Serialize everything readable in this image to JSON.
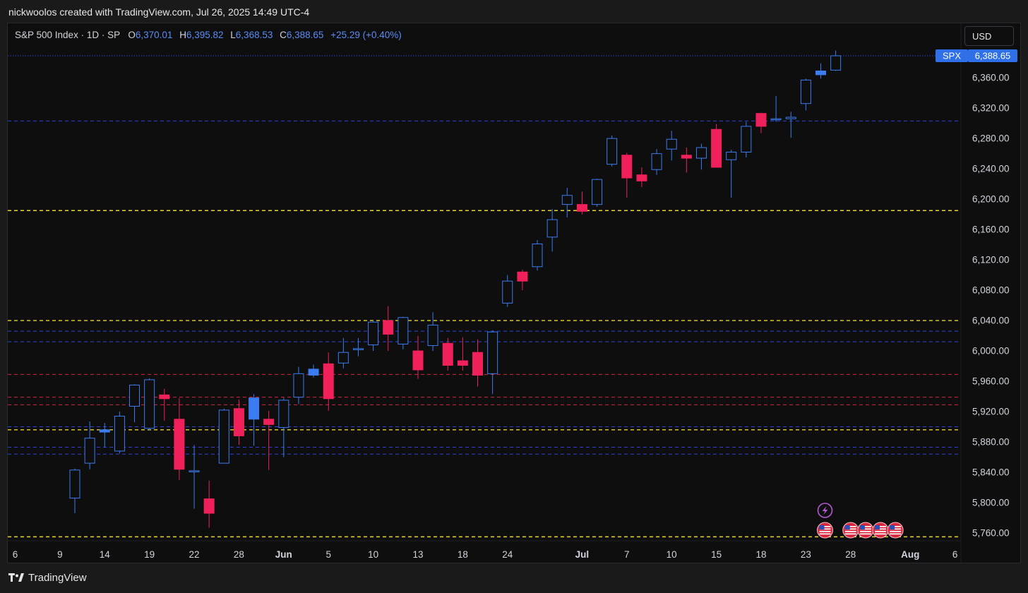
{
  "credit": "nickwoolos created with TradingView.com, Jul 26, 2025 14:49 UTC-4",
  "legend": {
    "symbol": "S&P 500 Index · 1D · SP",
    "o_label": "O",
    "o_value": "6,370.01",
    "h_label": "H",
    "h_value": "6,395.82",
    "l_label": "L",
    "l_value": "6,368.53",
    "c_label": "C",
    "c_value": "6,388.65",
    "change": "+25.29 (+0.40%)"
  },
  "currency_button": "USD",
  "price_tag": {
    "ticker": "SPX",
    "value": "6,388.65"
  },
  "footer_brand": "TradingView",
  "colors": {
    "up": "#3b7cf0",
    "down": "#f0215a",
    "yellow_line": "#e9d62a",
    "blue_line": "#2b43d6",
    "red_line": "#d7263d",
    "background": "#0e0e0f",
    "event_purple": "#b35ad6"
  },
  "chart_data": {
    "type": "candlestick",
    "ylim": [
      5742,
      6405
    ],
    "y_ticks": [
      5760,
      5800,
      5840,
      5880,
      5920,
      5960,
      6000,
      6040,
      6080,
      6120,
      6160,
      6200,
      6240,
      6280,
      6320,
      6360
    ],
    "y_tick_labels": [
      "5,760.00",
      "5,800.00",
      "5,840.00",
      "5,880.00",
      "5,920.00",
      "5,960.00",
      "6,000.00",
      "6,040.00",
      "6,080.00",
      "6,120.00",
      "6,160.00",
      "6,200.00",
      "6,240.00",
      "6,280.00",
      "6,320.00",
      "6,360.00"
    ],
    "x_ticks": [
      {
        "label": "6",
        "i": -4,
        "bold": false
      },
      {
        "label": "9",
        "i": -1,
        "bold": false
      },
      {
        "label": "14",
        "i": 2,
        "bold": false
      },
      {
        "label": "19",
        "i": 5,
        "bold": false
      },
      {
        "label": "22",
        "i": 8,
        "bold": false
      },
      {
        "label": "28",
        "i": 11,
        "bold": false
      },
      {
        "label": "Jun",
        "i": 14,
        "bold": true
      },
      {
        "label": "5",
        "i": 17,
        "bold": false
      },
      {
        "label": "10",
        "i": 20,
        "bold": false
      },
      {
        "label": "13",
        "i": 23,
        "bold": false
      },
      {
        "label": "18",
        "i": 26,
        "bold": false
      },
      {
        "label": "24",
        "i": 29,
        "bold": false
      },
      {
        "label": "Jul",
        "i": 34,
        "bold": true
      },
      {
        "label": "7",
        "i": 37,
        "bold": false
      },
      {
        "label": "10",
        "i": 40,
        "bold": false
      },
      {
        "label": "15",
        "i": 43,
        "bold": false
      },
      {
        "label": "18",
        "i": 46,
        "bold": false
      },
      {
        "label": "23",
        "i": 49,
        "bold": false
      },
      {
        "label": "28",
        "i": 52,
        "bold": false
      },
      {
        "label": "Aug",
        "i": 56,
        "bold": true
      },
      {
        "label": "6",
        "i": 59,
        "bold": false
      }
    ],
    "candles": [
      {
        "o": 5806,
        "h": 5845,
        "l": 5786,
        "c": 5843
      },
      {
        "o": 5852,
        "h": 5907,
        "l": 5844,
        "c": 5885
      },
      {
        "o": 5893,
        "h": 5905,
        "l": 5873,
        "c": 5896
      },
      {
        "o": 5868,
        "h": 5920,
        "l": 5865,
        "c": 5914
      },
      {
        "o": 5927,
        "h": 5956,
        "l": 5906,
        "c": 5955
      },
      {
        "o": 5898,
        "h": 5964,
        "l": 5895,
        "c": 5962
      },
      {
        "o": 5942,
        "h": 5950,
        "l": 5908,
        "c": 5937
      },
      {
        "o": 5910,
        "h": 5938,
        "l": 5830,
        "c": 5844
      },
      {
        "o": 5842,
        "h": 5876,
        "l": 5792,
        "c": 5842
      },
      {
        "o": 5805,
        "h": 5829,
        "l": 5767,
        "c": 5786
      },
      {
        "o": 5852,
        "h": 5924,
        "l": 5852,
        "c": 5922
      },
      {
        "o": 5924,
        "h": 5936,
        "l": 5876,
        "c": 5888
      },
      {
        "o": 5910,
        "h": 5943,
        "l": 5875,
        "c": 5938
      },
      {
        "o": 5910,
        "h": 5921,
        "l": 5843,
        "c": 5903
      },
      {
        "o": 5899,
        "h": 5938,
        "l": 5860,
        "c": 5935
      },
      {
        "o": 5939,
        "h": 5979,
        "l": 5930,
        "c": 5970
      },
      {
        "o": 5968,
        "h": 5982,
        "l": 5965,
        "c": 5976
      },
      {
        "o": 5983,
        "h": 5998,
        "l": 5921,
        "c": 5937
      },
      {
        "o": 5984,
        "h": 6017,
        "l": 5977,
        "c": 5998
      },
      {
        "o": 6002,
        "h": 6017,
        "l": 5993,
        "c": 6003
      },
      {
        "o": 6008,
        "h": 6040,
        "l": 6000,
        "c": 6038
      },
      {
        "o": 6040,
        "h": 6059,
        "l": 6000,
        "c": 6022
      },
      {
        "o": 6009,
        "h": 6045,
        "l": 6002,
        "c": 6044
      },
      {
        "o": 6000,
        "h": 6020,
        "l": 5963,
        "c": 5975
      },
      {
        "o": 6007,
        "h": 6051,
        "l": 6000,
        "c": 6034
      },
      {
        "o": 6010,
        "h": 6017,
        "l": 5974,
        "c": 5981
      },
      {
        "o": 5987,
        "h": 6018,
        "l": 5974,
        "c": 5981
      },
      {
        "o": 5998,
        "h": 6015,
        "l": 5953,
        "c": 5968
      },
      {
        "o": 5970,
        "h": 6027,
        "l": 5943,
        "c": 6025
      },
      {
        "o": 6063,
        "h": 6100,
        "l": 6058,
        "c": 6092
      },
      {
        "o": 6104,
        "h": 6107,
        "l": 6080,
        "c": 6092
      },
      {
        "o": 6111,
        "h": 6146,
        "l": 6106,
        "c": 6141
      },
      {
        "o": 6150,
        "h": 6187,
        "l": 6131,
        "c": 6173
      },
      {
        "o": 6193,
        "h": 6215,
        "l": 6176,
        "c": 6205
      },
      {
        "o": 6193,
        "h": 6210,
        "l": 6180,
        "c": 6184
      },
      {
        "o": 6193,
        "h": 6227,
        "l": 6190,
        "c": 6226
      },
      {
        "o": 6246,
        "h": 6284,
        "l": 6243,
        "c": 6280
      },
      {
        "o": 6258,
        "h": 6261,
        "l": 6202,
        "c": 6228
      },
      {
        "o": 6232,
        "h": 6242,
        "l": 6216,
        "c": 6224
      },
      {
        "o": 6239,
        "h": 6266,
        "l": 6232,
        "c": 6260
      },
      {
        "o": 6266,
        "h": 6290,
        "l": 6251,
        "c": 6279
      },
      {
        "o": 6258,
        "h": 6268,
        "l": 6235,
        "c": 6254
      },
      {
        "o": 6254,
        "h": 6273,
        "l": 6239,
        "c": 6268
      },
      {
        "o": 6292,
        "h": 6299,
        "l": 6242,
        "c": 6242
      },
      {
        "o": 6252,
        "h": 6265,
        "l": 6202,
        "c": 6262
      },
      {
        "o": 6262,
        "h": 6302,
        "l": 6255,
        "c": 6296
      },
      {
        "o": 6313,
        "h": 6314,
        "l": 6287,
        "c": 6296
      },
      {
        "o": 6305,
        "h": 6336,
        "l": 6302,
        "c": 6306
      },
      {
        "o": 6306,
        "h": 6315,
        "l": 6281,
        "c": 6308
      },
      {
        "o": 6326,
        "h": 6359,
        "l": 6317,
        "c": 6357
      },
      {
        "o": 6364,
        "h": 6379,
        "l": 6359,
        "c": 6369
      },
      {
        "o": 6370,
        "h": 6396,
        "l": 6369,
        "c": 6389
      }
    ],
    "horizontal_lines": [
      {
        "value": 6389,
        "color": "blue",
        "style": "dotted"
      },
      {
        "value": 6303,
        "color": "blue",
        "style": "dashed"
      },
      {
        "value": 6185,
        "color": "yellow",
        "style": "dashed"
      },
      {
        "value": 6040,
        "color": "yellow",
        "style": "dashed"
      },
      {
        "value": 6026,
        "color": "blue",
        "style": "dashed"
      },
      {
        "value": 6012,
        "color": "blue",
        "style": "dashed"
      },
      {
        "value": 5969,
        "color": "red",
        "style": "dashed"
      },
      {
        "value": 5939,
        "color": "red",
        "style": "dashed"
      },
      {
        "value": 5929,
        "color": "red",
        "style": "dashed"
      },
      {
        "value": 5900,
        "color": "blue",
        "style": "dashed"
      },
      {
        "value": 5896,
        "color": "yellow",
        "style": "dashed"
      },
      {
        "value": 5873,
        "color": "blue",
        "style": "dashed"
      },
      {
        "value": 5864,
        "color": "blue",
        "style": "dashed"
      },
      {
        "value": 5755,
        "color": "yellow",
        "style": "dashed"
      }
    ],
    "event_markers": [
      {
        "type": "flash-icon",
        "i": 50,
        "row": "upper"
      },
      {
        "type": "us-flag-icon",
        "i": 50,
        "row": "lower"
      },
      {
        "type": "us-flag-icon",
        "i": 52,
        "row": "lower"
      },
      {
        "type": "us-flag-icon",
        "i": 53,
        "row": "lower"
      },
      {
        "type": "us-flag-icon",
        "i": 54,
        "row": "lower"
      },
      {
        "type": "us-flag-icon",
        "i": 55,
        "row": "lower"
      }
    ]
  }
}
